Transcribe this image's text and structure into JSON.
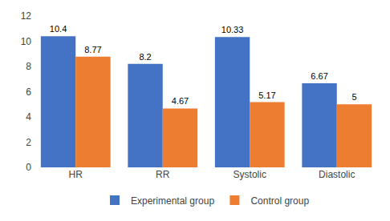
{
  "chart_data": {
    "type": "bar",
    "categories": [
      "HR",
      "RR",
      "Systolic",
      "Diastolic"
    ],
    "series": [
      {
        "name": "Experimental group",
        "color": "#4472C4",
        "values": [
          10.4,
          8.2,
          10.33,
          6.67
        ]
      },
      {
        "name": "Control group",
        "color": "#ED7D31",
        "values": [
          8.77,
          4.67,
          5.17,
          5
        ]
      }
    ],
    "ylim": [
      0,
      12
    ],
    "yticks": [
      0,
      2,
      4,
      6,
      8,
      10,
      12
    ],
    "grid": false,
    "legend": "bottom",
    "data_labels": true
  }
}
